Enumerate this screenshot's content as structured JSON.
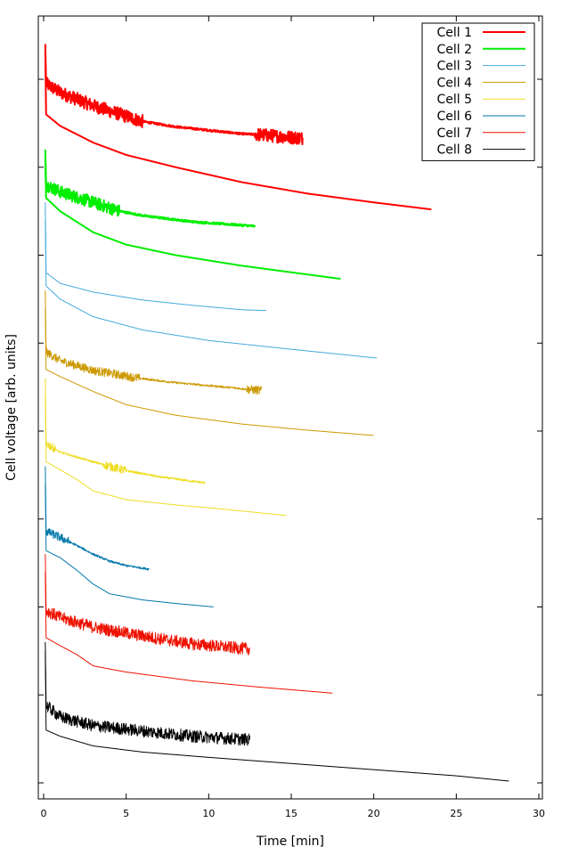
{
  "chart_data": {
    "type": "line",
    "title": "",
    "xlabel": "Time [min]",
    "ylabel": "Cell voltage [arb. units]",
    "xlim": [
      0,
      30
    ],
    "ylim": [
      0,
      88
    ],
    "xticks": [
      0,
      5,
      10,
      15,
      20,
      25,
      30
    ],
    "yticks": [
      0,
      10,
      20,
      30,
      40,
      50,
      60,
      70,
      80
    ],
    "y_tick_labels_shown": false,
    "grid": false,
    "legend_position": "top-right",
    "watermark": "",
    "series": [
      {
        "name": "Cell 1",
        "color": "#ff0000",
        "stroke_width": 2,
        "curves": [
          {
            "noisy": true,
            "noise_amp": 0.75,
            "noise_segments": [
              [
                0.15,
                6.0
              ],
              [
                12.8,
                15.7
              ]
            ],
            "points": [
              [
                0.1,
                84.0
              ],
              [
                0.15,
                79.5
              ],
              [
                1,
                78.5
              ],
              [
                3,
                77.0
              ],
              [
                6,
                75.2
              ],
              [
                8,
                74.6
              ],
              [
                10,
                74.2
              ],
              [
                12,
                73.8
              ],
              [
                13,
                73.7
              ],
              [
                15.7,
                73.3
              ]
            ]
          },
          {
            "noisy": false,
            "points": [
              [
                0.1,
                83.0
              ],
              [
                0.15,
                76.0
              ],
              [
                1,
                74.7
              ],
              [
                3,
                72.8
              ],
              [
                5,
                71.4
              ],
              [
                8,
                70.0
              ],
              [
                12,
                68.3
              ],
              [
                16,
                67.0
              ],
              [
                20,
                66.0
              ],
              [
                23.5,
                65.2
              ]
            ]
          }
        ]
      },
      {
        "name": "Cell 2",
        "color": "#00ee00",
        "stroke_width": 2,
        "curves": [
          {
            "noisy": true,
            "noise_amp": 0.7,
            "noise_segments": [
              [
                0.15,
                4.6
              ]
            ],
            "points": [
              [
                0.1,
                72.0
              ],
              [
                0.15,
                68.0
              ],
              [
                1,
                67.2
              ],
              [
                3,
                66.0
              ],
              [
                4.6,
                65.0
              ],
              [
                6,
                64.5
              ],
              [
                9,
                63.8
              ],
              [
                12.8,
                63.3
              ]
            ]
          },
          {
            "noisy": false,
            "points": [
              [
                0.1,
                71.0
              ],
              [
                0.15,
                66.5
              ],
              [
                1,
                65.0
              ],
              [
                2,
                63.8
              ],
              [
                3,
                62.6
              ],
              [
                5,
                61.2
              ],
              [
                8,
                60.0
              ],
              [
                12,
                58.8
              ],
              [
                16,
                57.8
              ],
              [
                18,
                57.3
              ]
            ]
          }
        ]
      },
      {
        "name": "Cell 3",
        "color": "#44aadd",
        "stroke_width": 1,
        "curves": [
          {
            "noisy": false,
            "points": [
              [
                0.1,
                66.0
              ],
              [
                0.15,
                58.0
              ],
              [
                1,
                56.8
              ],
              [
                3,
                55.8
              ],
              [
                6,
                54.9
              ],
              [
                9,
                54.3
              ],
              [
                12,
                53.8
              ],
              [
                13.5,
                53.7
              ]
            ]
          },
          {
            "noisy": false,
            "points": [
              [
                0.1,
                64.0
              ],
              [
                0.15,
                56.5
              ],
              [
                1,
                55.0
              ],
              [
                3,
                53.0
              ],
              [
                6,
                51.5
              ],
              [
                10,
                50.3
              ],
              [
                15,
                49.3
              ],
              [
                20.2,
                48.3
              ]
            ]
          }
        ]
      },
      {
        "name": "Cell 4",
        "color": "#cc9900",
        "stroke_width": 1,
        "curves": [
          {
            "noisy": true,
            "noise_amp": 0.5,
            "noise_segments": [
              [
                0.15,
                5.8
              ],
              [
                12.3,
                13.2
              ]
            ],
            "points": [
              [
                0.1,
                56.0
              ],
              [
                0.15,
                49.0
              ],
              [
                1,
                48.0
              ],
              [
                3,
                46.9
              ],
              [
                5.8,
                46.0
              ],
              [
                8,
                45.5
              ],
              [
                11,
                45.0
              ],
              [
                13.2,
                44.6
              ]
            ]
          },
          {
            "noisy": false,
            "points": [
              [
                0.1,
                54.0
              ],
              [
                0.15,
                47.0
              ],
              [
                1,
                46.2
              ],
              [
                3,
                44.5
              ],
              [
                5,
                43.0
              ],
              [
                8,
                41.8
              ],
              [
                12,
                40.8
              ],
              [
                16,
                40.1
              ],
              [
                20,
                39.5
              ]
            ]
          }
        ]
      },
      {
        "name": "Cell 5",
        "color": "#eedd22",
        "stroke_width": 1,
        "curves": [
          {
            "noisy": true,
            "noise_amp": 0.5,
            "noise_segments": [
              [
                0.15,
                0.7
              ],
              [
                3.6,
                5.0
              ]
            ],
            "points": [
              [
                0.1,
                46.0
              ],
              [
                0.15,
                38.6
              ],
              [
                1,
                37.6
              ],
              [
                3,
                36.5
              ],
              [
                5,
                35.5
              ],
              [
                7,
                34.8
              ],
              [
                9.8,
                34.1
              ]
            ]
          },
          {
            "noisy": false,
            "points": [
              [
                0.1,
                44.0
              ],
              [
                0.15,
                36.5
              ],
              [
                1,
                35.6
              ],
              [
                2,
                34.5
              ],
              [
                3,
                33.2
              ],
              [
                5,
                32.2
              ],
              [
                8,
                31.6
              ],
              [
                11,
                31.1
              ],
              [
                14.7,
                30.4
              ]
            ]
          }
        ]
      },
      {
        "name": "Cell 6",
        "color": "#0077aa",
        "stroke_width": 1,
        "curves": [
          {
            "noisy": true,
            "noise_amp": 0.5,
            "noise_segments": [
              [
                0.15,
                1.6
              ]
            ],
            "points": [
              [
                0.1,
                36.0
              ],
              [
                0.15,
                28.6
              ],
              [
                1,
                27.9
              ],
              [
                2,
                27.0
              ],
              [
                3,
                26.0
              ],
              [
                4,
                25.2
              ],
              [
                5,
                24.7
              ],
              [
                6.4,
                24.3
              ]
            ]
          },
          {
            "noisy": false,
            "points": [
              [
                0.1,
                34.0
              ],
              [
                0.15,
                26.4
              ],
              [
                1,
                25.6
              ],
              [
                2,
                24.2
              ],
              [
                3,
                22.6
              ],
              [
                4,
                21.5
              ],
              [
                6,
                20.8
              ],
              [
                8,
                20.4
              ],
              [
                10.3,
                20.0
              ]
            ]
          }
        ]
      },
      {
        "name": "Cell 7",
        "color": "#ee1100",
        "stroke_width": 1,
        "curves": [
          {
            "noisy": true,
            "noise_amp": 0.7,
            "noise_segments": [
              [
                0.15,
                12.5
              ]
            ],
            "points": [
              [
                0.1,
                26.0
              ],
              [
                0.15,
                19.6
              ],
              [
                1,
                18.8
              ],
              [
                3,
                17.7
              ],
              [
                6,
                16.7
              ],
              [
                9,
                15.8
              ],
              [
                12.5,
                15.2
              ]
            ]
          },
          {
            "noisy": false,
            "points": [
              [
                0.1,
                24.0
              ],
              [
                0.15,
                16.5
              ],
              [
                1,
                15.6
              ],
              [
                2,
                14.6
              ],
              [
                3,
                13.3
              ],
              [
                5,
                12.6
              ],
              [
                9,
                11.6
              ],
              [
                13,
                10.9
              ],
              [
                17.5,
                10.2
              ]
            ]
          }
        ]
      },
      {
        "name": "Cell 8",
        "color": "#000000",
        "stroke_width": 1,
        "curves": [
          {
            "noisy": true,
            "noise_amp": 0.7,
            "noise_segments": [
              [
                0.15,
                12.5
              ]
            ],
            "points": [
              [
                0.1,
                16.0
              ],
              [
                0.15,
                8.8
              ],
              [
                1,
                7.5
              ],
              [
                3,
                6.5
              ],
              [
                6,
                5.9
              ],
              [
                9,
                5.3
              ],
              [
                12.5,
                4.9
              ]
            ]
          },
          {
            "noisy": false,
            "points": [
              [
                0.1,
                15.0
              ],
              [
                0.15,
                6.0
              ],
              [
                1,
                5.3
              ],
              [
                3,
                4.2
              ],
              [
                6,
                3.5
              ],
              [
                10,
                2.9
              ],
              [
                15,
                2.2
              ],
              [
                20,
                1.5
              ],
              [
                25,
                0.8
              ],
              [
                28.2,
                0.2
              ]
            ]
          }
        ]
      }
    ]
  }
}
